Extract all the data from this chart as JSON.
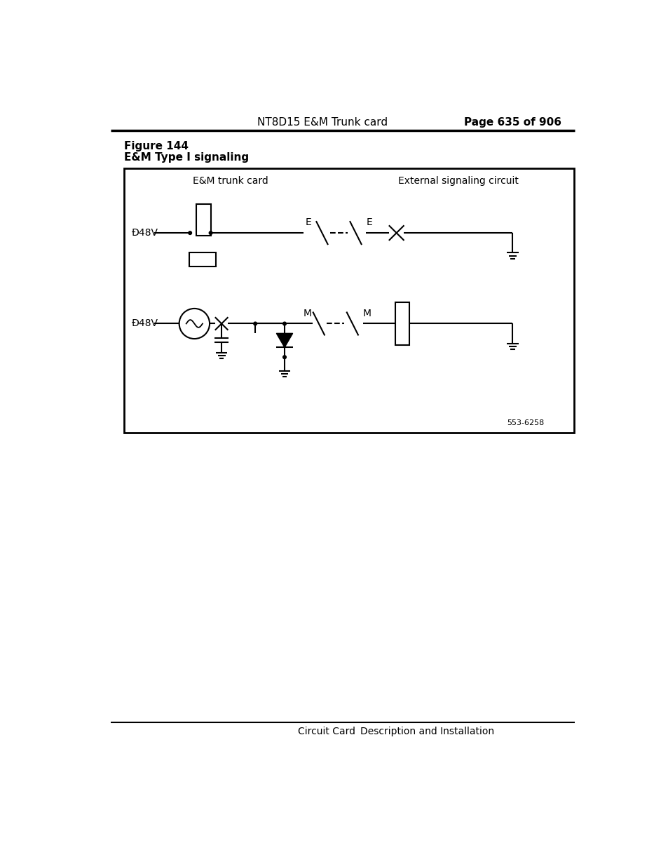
{
  "page_header_left": "NT8D15 E&M Trunk card",
  "page_header_right": "Page 635 of 906",
  "figure_label": "Figure 144",
  "figure_title": "E&M Type I signaling",
  "diagram_title_left": "E&M trunk card",
  "diagram_title_right": "External signaling circuit",
  "label_48v_top": "Ð48V",
  "label_48v_bottom": "Ð48V",
  "label_E_left": "E",
  "label_E_right": "E",
  "label_M_left": "M",
  "label_M_right": "M",
  "figure_number": "553-6258",
  "footer_left": "Circuit Card",
  "footer_right": "Description and Installation",
  "bg_color": "#ffffff",
  "line_color": "#000000"
}
